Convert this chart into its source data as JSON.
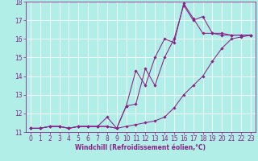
{
  "xlabel": "Windchill (Refroidissement éolien,°C)",
  "xlim": [
    -0.5,
    23.5
  ],
  "ylim": [
    11,
    18
  ],
  "yticks": [
    11,
    12,
    13,
    14,
    15,
    16,
    17,
    18
  ],
  "xticks": [
    0,
    1,
    2,
    3,
    4,
    5,
    6,
    7,
    8,
    9,
    10,
    11,
    12,
    13,
    14,
    15,
    16,
    17,
    18,
    19,
    20,
    21,
    22,
    23
  ],
  "bg_color": "#b2eee8",
  "grid_color": "#ffffff",
  "line_color": "#882288",
  "line1_x": [
    0,
    1,
    2,
    3,
    4,
    5,
    6,
    7,
    8,
    9,
    10,
    11,
    12,
    13,
    14,
    15,
    16,
    17,
    18,
    19,
    20,
    21,
    22,
    23
  ],
  "line1_y": [
    11.2,
    11.2,
    11.3,
    11.3,
    11.2,
    11.3,
    11.3,
    11.3,
    11.3,
    11.2,
    12.4,
    12.5,
    14.4,
    13.5,
    15.0,
    16.0,
    17.8,
    17.0,
    17.2,
    16.3,
    16.3,
    16.2,
    16.2,
    16.2
  ],
  "line2_x": [
    0,
    1,
    2,
    3,
    4,
    5,
    6,
    7,
    8,
    9,
    10,
    11,
    12,
    13,
    14,
    15,
    16,
    17,
    18,
    19,
    20,
    21,
    22,
    23
  ],
  "line2_y": [
    11.2,
    11.2,
    11.3,
    11.3,
    11.2,
    11.3,
    11.3,
    11.3,
    11.8,
    11.2,
    12.4,
    14.3,
    13.5,
    15.0,
    16.0,
    15.8,
    17.9,
    17.1,
    16.3,
    16.3,
    16.2,
    16.2,
    16.2,
    16.2
  ],
  "line3_x": [
    0,
    1,
    2,
    3,
    4,
    5,
    6,
    7,
    8,
    9,
    10,
    11,
    12,
    13,
    14,
    15,
    16,
    17,
    18,
    19,
    20,
    21,
    22,
    23
  ],
  "line3_y": [
    11.2,
    11.2,
    11.3,
    11.3,
    11.2,
    11.3,
    11.3,
    11.3,
    11.3,
    11.2,
    11.3,
    11.4,
    11.5,
    11.6,
    11.8,
    12.3,
    13.0,
    13.5,
    14.0,
    14.8,
    15.5,
    16.0,
    16.1,
    16.2
  ],
  "tick_fontsize": 5.5,
  "xlabel_fontsize": 5.5,
  "marker_size": 1.8,
  "line_width": 0.75
}
